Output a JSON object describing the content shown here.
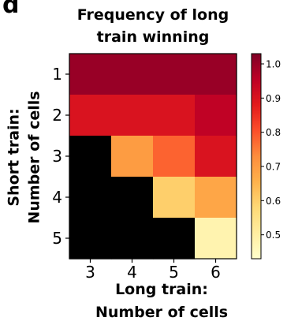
{
  "figure": {
    "panel_label": "d"
  },
  "chart_data": {
    "type": "heatmap",
    "title": "Frequency of long train winning",
    "title_lines": [
      "Frequency of long",
      "train winning"
    ],
    "xlabel": "Long train: Number of cells",
    "xlabel_lines": [
      "Long train:",
      "Number of cells"
    ],
    "ylabel": "Short train: Number of cells",
    "ylabel_lines": [
      "Short train:",
      "Number of cells"
    ],
    "x_categories": [
      "3",
      "4",
      "5",
      "6"
    ],
    "y_categories": [
      "1",
      "2",
      "3",
      "4",
      "5"
    ],
    "values": [
      [
        1.0,
        1.0,
        1.0,
        1.0
      ],
      [
        0.9,
        0.9,
        0.9,
        0.95
      ],
      [
        null,
        0.7,
        0.78,
        0.9
      ],
      [
        null,
        null,
        0.6,
        0.68
      ],
      [
        null,
        null,
        null,
        0.48
      ]
    ],
    "missing_color": "#000000",
    "colormap": "YlOrRd",
    "colorbar": {
      "range": [
        0.43,
        1.03
      ],
      "ticks": [
        1.0,
        0.9,
        0.8,
        0.7,
        0.6,
        0.5
      ],
      "tick_labels": [
        "1.0",
        "0.9",
        "0.8",
        "0.7",
        "0.6",
        "0.5"
      ]
    }
  }
}
